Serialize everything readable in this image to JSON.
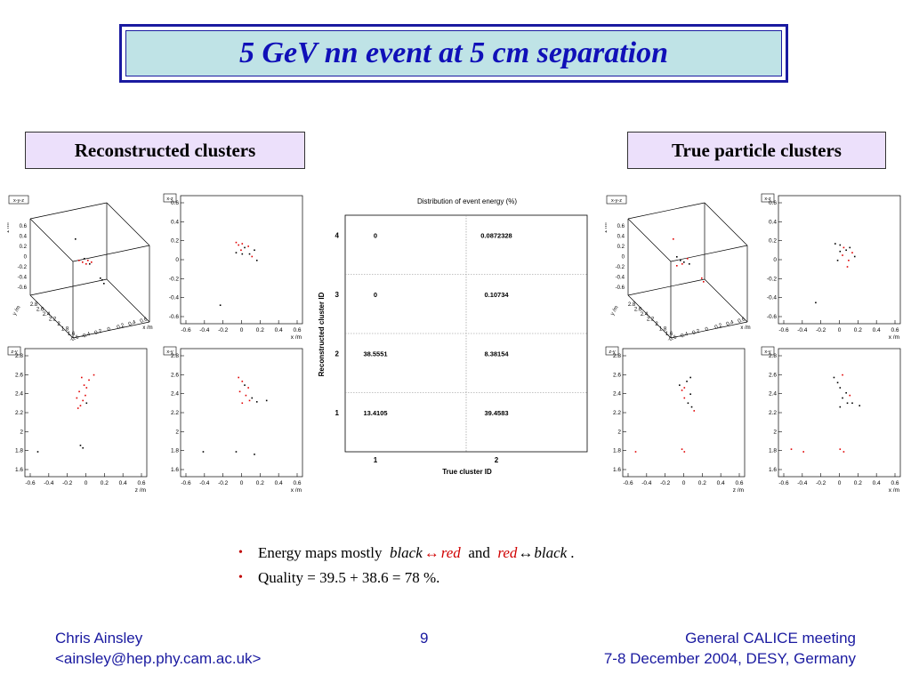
{
  "slide": {
    "title": "5 GeV  nn event at 5 cm separation",
    "left_label": "Reconstructed clusters",
    "right_label": "True particle clusters"
  },
  "plots": {
    "tag_xyz": "x-y-z",
    "tag_xz": "x-z",
    "tag_zy": "z-y",
    "tag_xy": "x-y",
    "unit_x": "x /m",
    "unit_y": "y /m",
    "unit_z": "z /m",
    "ticks_xz_y": [
      "0.6",
      "0.4",
      "0.2",
      "0",
      "-0.2",
      "-0.4",
      "-0.6"
    ],
    "ticks_xz_x": [
      "-0.6",
      "-0.4",
      "-0.2",
      "0",
      "0.2",
      "0.4",
      "0.6"
    ],
    "ticks_y": [
      "2.8",
      "2.6",
      "2.4",
      "2.2",
      "2",
      "1.8",
      "1.6"
    ],
    "ticks_3d_z": [
      "0.6",
      "0.4",
      "0.2",
      "0",
      "-0.2",
      "-0.4",
      "-0.6"
    ],
    "ticks_3d_y": [
      "2.8",
      "2.6",
      "2.4",
      "2.2",
      "2",
      "1.8",
      "1.6"
    ],
    "ticks_3d_x": [
      "-0.6",
      "-0.4",
      "-0.2",
      "0",
      "0.2",
      "0.4",
      "0.6"
    ],
    "colors": {
      "black_hits": "#000000",
      "red_hits": "#e00000",
      "frame": "#000000"
    }
  },
  "table": {
    "title": "Distribution of event energy (%)",
    "xlabel": "True cluster ID",
    "ylabel": "Reconstructed cluster ID",
    "x_ticks": [
      "1",
      "2"
    ],
    "y_ticks": [
      "4",
      "3",
      "2",
      "1"
    ],
    "cells": [
      [
        "0",
        "0.0872328"
      ],
      [
        "0",
        "0.10734"
      ],
      [
        "38.5551",
        "8.38154"
      ],
      [
        "13.4105",
        "39.4583"
      ]
    ]
  },
  "bullets": {
    "b1_prefix": "Energy maps mostly",
    "b1_black1": "black",
    "b1_arrow1": "↔",
    "b1_red1": "red",
    "b1_and": "and",
    "b1_red2": "red",
    "b1_arrow2": "↔",
    "b1_black2": "black",
    "b1_period": ".",
    "b2": "Quality = 39.5 + 38.6 = 78 %."
  },
  "footer": {
    "author": "Chris Ainsley",
    "email": "<ainsley@hep.phy.cam.ac.uk>",
    "page": "9",
    "meeting": "General CALICE meeting",
    "date": "7-8 December 2004, DESY, Germany"
  }
}
